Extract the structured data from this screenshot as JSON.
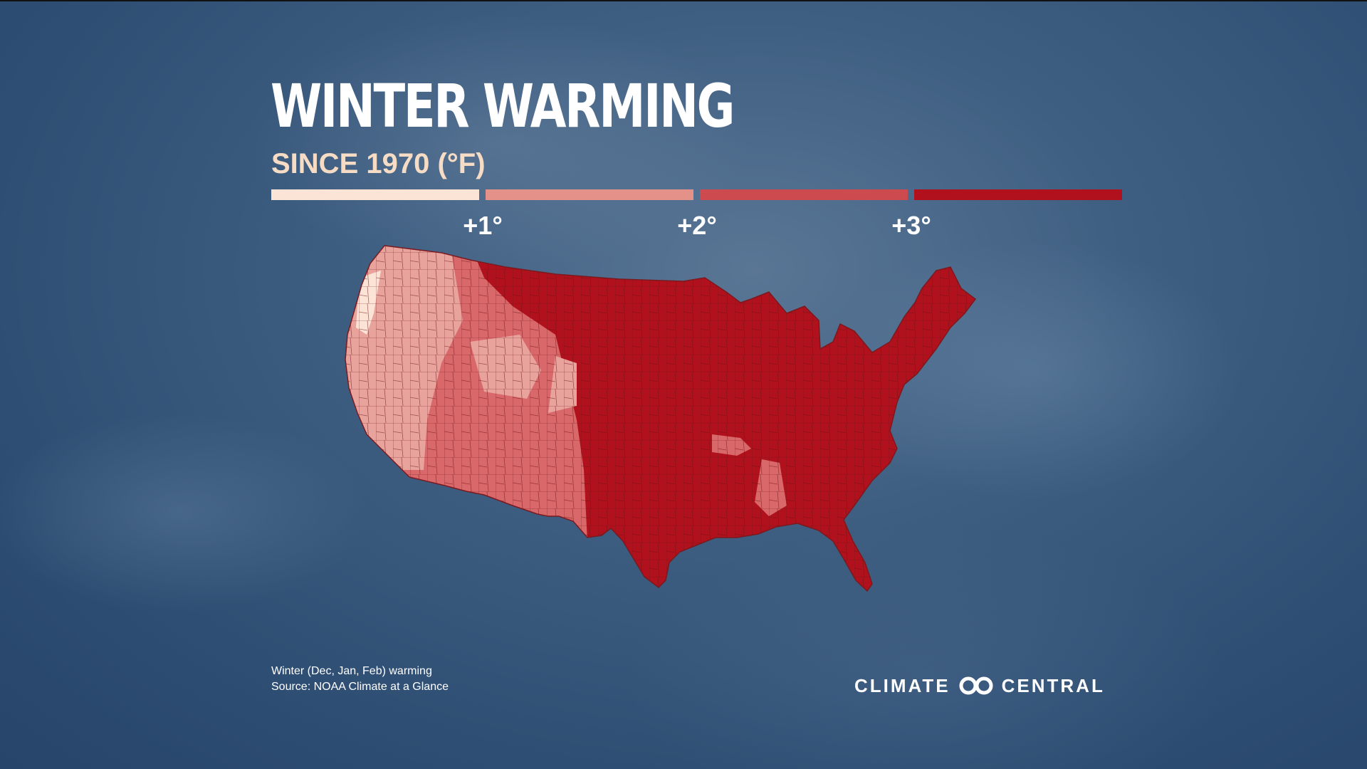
{
  "header": {
    "title": "WINTER WARMING",
    "subtitle": "SINCE 1970 (°F)"
  },
  "legend": {
    "swatches": [
      {
        "color": "#fbe4d6"
      },
      {
        "color": "#e4918a"
      },
      {
        "color": "#cd4b4f"
      },
      {
        "color": "#b0111c"
      }
    ],
    "ticks": [
      "+1°",
      "+2°",
      "+3°"
    ]
  },
  "map": {
    "region": "contiguous-united-states",
    "zones": [
      {
        "name": "pacific-coast-lightest",
        "color": "#fbe4d6"
      },
      {
        "name": "west-light",
        "color": "#e8a39d"
      },
      {
        "name": "southwest-medium",
        "color": "#d9686a"
      },
      {
        "name": "east-plains-darkest",
        "color": "#b0111c"
      }
    ],
    "outline_color": "#7a1a1f"
  },
  "footer": {
    "note_line_1": "Winter (Dec, Jan, Feb) warming",
    "note_line_2": "Source: NOAA Climate at a Glance",
    "logo_left": "CLIMATE",
    "logo_right": "CENTRAL"
  }
}
